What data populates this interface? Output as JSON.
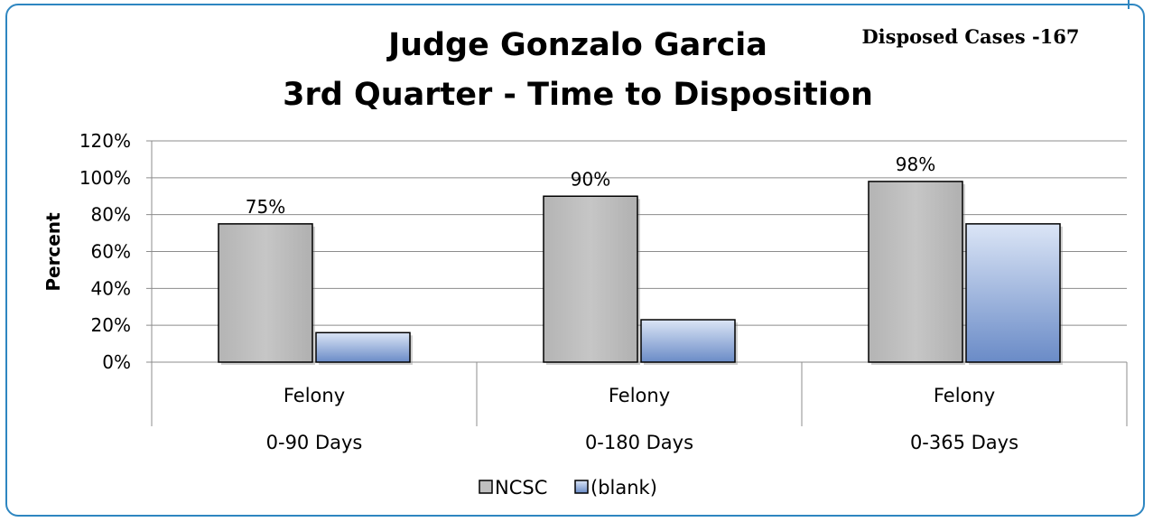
{
  "chart_data": {
    "type": "bar",
    "title_line1": "Judge Gonzalo Garcia",
    "title_line2": "3rd Quarter - Time to Disposition",
    "note": "Disposed Cases -167",
    "ylabel": "Percent",
    "ylim": [
      0,
      120
    ],
    "yticks": [
      "0%",
      "20%",
      "40%",
      "60%",
      "80%",
      "100%",
      "120%"
    ],
    "grid": true,
    "legend_position": "bottom",
    "categories": [
      {
        "type": "Felony",
        "range": "0-90 Days"
      },
      {
        "type": "Felony",
        "range": "0-180 Days"
      },
      {
        "type": "Felony",
        "range": "0-365 Days"
      }
    ],
    "series": [
      {
        "name": "NCSC",
        "values": [
          75,
          90,
          98
        ],
        "data_labels": [
          "75%",
          "90%",
          "98%"
        ],
        "color": "#c0c0c0"
      },
      {
        "name": "(blank)",
        "values": [
          16,
          23,
          75
        ],
        "data_labels": null,
        "color": "#a9bfe6"
      }
    ],
    "colors": {
      "frame": "#2e86c1",
      "gridline": "#8c8c8c",
      "ncsc": "#c0c0c0",
      "blank_top": "#d6e2f5",
      "blank_bottom": "#6f8fc9"
    }
  }
}
